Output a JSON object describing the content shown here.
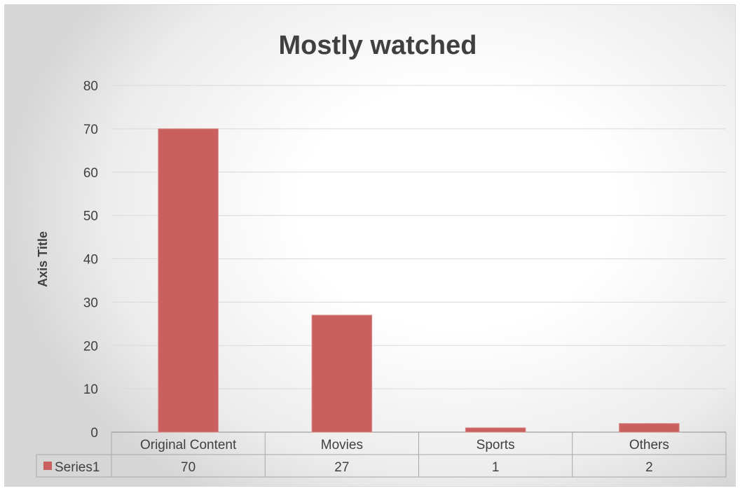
{
  "chart_data": {
    "type": "bar",
    "title": "Mostly watched",
    "xlabel": "",
    "ylabel": "Axis Title",
    "categories": [
      "Original Content",
      "Movies",
      "Sports",
      "Others"
    ],
    "series": [
      {
        "name": "Series1",
        "values": [
          70,
          27,
          1,
          2
        ],
        "color": "#c9605f"
      }
    ],
    "ylim": [
      0,
      80
    ],
    "yticks": [
      "0",
      "10",
      "20",
      "30",
      "40",
      "50",
      "60",
      "70",
      "80"
    ],
    "table_values": [
      "70",
      "27",
      "1",
      "2"
    ],
    "grid": true,
    "legend": "data-table"
  }
}
